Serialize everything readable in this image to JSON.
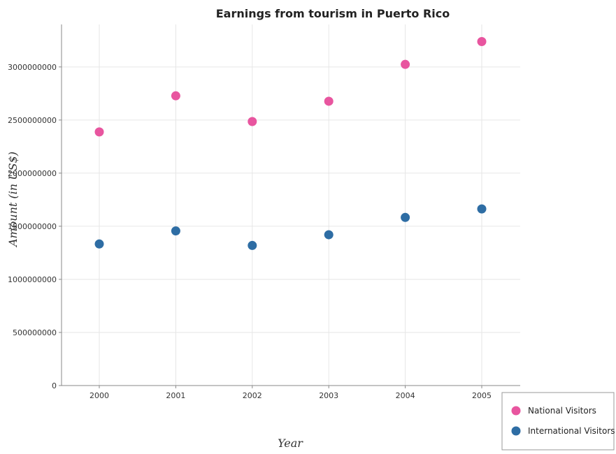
{
  "chart_data": {
    "type": "scatter",
    "title": "Earnings from tourism in Puerto Rico",
    "xlabel": "Year",
    "ylabel": "Amount (in US$)",
    "categories": [
      "2000",
      "2001",
      "2002",
      "2003",
      "2004",
      "2005"
    ],
    "ylim": [
      0,
      3400000000
    ],
    "yticks": [
      0,
      500000000,
      1000000000,
      1500000000,
      2000000000,
      2500000000,
      3000000000
    ],
    "ytick_labels": [
      "0",
      "500000000",
      "1000000000",
      "1500000000",
      "2000000000",
      "2500000000",
      "3000000000"
    ],
    "grid": true,
    "legend_position": "bottom-right",
    "series": [
      {
        "name": "National Visitors",
        "color": "#e8559f",
        "values": [
          2388000000,
          2728000000,
          2486000000,
          2677000000,
          3024000000,
          3239000000
        ]
      },
      {
        "name": "International Visitors",
        "color": "#2e6da4",
        "values": [
          1333000000,
          1456000000,
          1319000000,
          1420000000,
          1583000000,
          1663000000
        ]
      }
    ]
  }
}
